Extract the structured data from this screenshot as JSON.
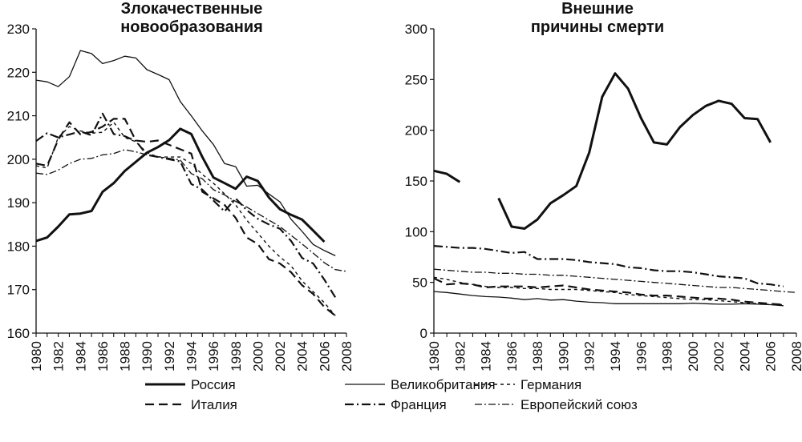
{
  "chart_data": [
    {
      "type": "line",
      "title_lines": [
        "Злокачественные",
        "новообразования"
      ],
      "xlabel": "",
      "ylabel": "",
      "xlim": [
        1980,
        2008
      ],
      "ylim": [
        160,
        230
      ],
      "yticks": [
        160,
        170,
        180,
        190,
        200,
        210,
        220,
        230
      ],
      "xticks": [
        1980,
        1982,
        1984,
        1986,
        1988,
        1990,
        1992,
        1994,
        1996,
        1998,
        2000,
        2002,
        2004,
        2006,
        2008
      ],
      "grid": false,
      "series": [
        {
          "name": "Россия",
          "style": "russia",
          "x": [
            1980,
            1981,
            1982,
            1983,
            1984,
            1985,
            1986,
            1987,
            1988,
            1989,
            1990,
            1991,
            1992,
            1993,
            1994,
            1995,
            1996,
            1997,
            1998,
            1999,
            2000,
            2001,
            2002,
            2003,
            2004,
            2005,
            2006
          ],
          "values": [
            181.2,
            182,
            184.5,
            187.3,
            187.5,
            188.1,
            192.5,
            194.5,
            197.3,
            199.4,
            201.5,
            202.8,
            204.4,
            207,
            205.8,
            200.5,
            195.8,
            194.5,
            193.2,
            196,
            195,
            191.2,
            188.5,
            187.2,
            186.1,
            183.6,
            181
          ]
        },
        {
          "name": "Великобритания",
          "style": "uk",
          "x": [
            1980,
            1981,
            1982,
            1983,
            1984,
            1985,
            1986,
            1987,
            1988,
            1989,
            1990,
            1991,
            1992,
            1993,
            1994,
            1995,
            1996,
            1997,
            1998,
            1999,
            2000,
            2001,
            2002,
            2003,
            2004,
            2005,
            2006,
            2007
          ],
          "values": [
            218.2,
            217.8,
            216.7,
            219,
            225,
            224.3,
            222,
            222.7,
            223.7,
            223.3,
            220.6,
            219.5,
            218.3,
            213.3,
            210,
            206.5,
            203.4,
            199,
            198.3,
            193.8,
            194,
            192,
            190.2,
            186.2,
            183.4,
            180.4,
            179,
            177.8
          ]
        },
        {
          "name": "Германия",
          "style": "germany",
          "x": [
            1980,
            1981,
            1982,
            1983,
            1984,
            1985,
            1986,
            1987,
            1988,
            1989,
            1990,
            1991,
            1992,
            1993,
            1994,
            1995,
            1996,
            1997,
            1998,
            1999,
            2000,
            2001,
            2002,
            2003,
            2004,
            2005,
            2006,
            2007
          ],
          "values": [
            198.5,
            198,
            205,
            207.5,
            206.5,
            206,
            206.2,
            208.5,
            205,
            204,
            201.5,
            200.5,
            200.5,
            200.5,
            199,
            196.5,
            194.5,
            192,
            189.5,
            186,
            183,
            180,
            177.5,
            175.5,
            172,
            169.5,
            167,
            164
          ]
        },
        {
          "name": "Италия",
          "style": "italy",
          "x": [
            1980,
            1981,
            1982,
            1983,
            1984,
            1985,
            1986,
            1987,
            1988,
            1989,
            1990,
            1991,
            1992,
            1993,
            1994,
            1995,
            1996,
            1997,
            1998,
            1999,
            2000,
            2001,
            2002,
            2003,
            2004,
            2005,
            2006,
            2007
          ],
          "values": [
            199,
            198.5,
            204.5,
            208.5,
            205.7,
            206.3,
            207.5,
            209.3,
            209.3,
            204.3,
            204,
            204.3,
            203.3,
            202.3,
            201.3,
            192.5,
            191,
            189.5,
            186.5,
            182,
            180.5,
            177,
            176,
            174,
            171,
            169,
            166,
            164
          ]
        },
        {
          "name": "Франция",
          "style": "france",
          "x": [
            1980,
            1981,
            1982,
            1983,
            1984,
            1985,
            1986,
            1987,
            1988,
            1989,
            1990,
            1991,
            1992,
            1993,
            1994,
            1995,
            1996,
            1997,
            1998,
            1999,
            2000,
            2001,
            2002,
            2003,
            2004,
            2005,
            2006,
            2007
          ],
          "values": [
            204.2,
            206,
            205,
            205.7,
            206.4,
            205.5,
            210.5,
            205.8,
            205.3,
            204.2,
            201,
            200.5,
            200,
            199.5,
            194.3,
            193,
            190.5,
            188,
            191,
            188.3,
            186.3,
            185,
            184,
            181.2,
            177.3,
            176,
            172.3,
            168.2
          ]
        },
        {
          "name": "Европейский союз",
          "style": "eu",
          "x": [
            1980,
            1981,
            1982,
            1983,
            1984,
            1985,
            1986,
            1987,
            1988,
            1989,
            1990,
            1991,
            1992,
            1993,
            1994,
            1995,
            1996,
            1997,
            1998,
            1999,
            2000,
            2001,
            2002,
            2003,
            2004,
            2005,
            2006,
            2007,
            2008
          ],
          "values": [
            196.8,
            196.5,
            197.5,
            199,
            200,
            200.2,
            201,
            201.3,
            202.2,
            201.7,
            201,
            200.6,
            200.2,
            199.8,
            196.7,
            195.5,
            193,
            191.8,
            190.3,
            189,
            187.5,
            186,
            184.5,
            182.5,
            180.5,
            178.4,
            176.2,
            174.6,
            174.2
          ]
        }
      ]
    },
    {
      "type": "line",
      "title_lines": [
        "Внешние",
        "причины смерти"
      ],
      "xlabel": "",
      "ylabel": "",
      "xlim": [
        1980,
        2008
      ],
      "ylim": [
        0,
        300
      ],
      "yticks": [
        0,
        50,
        100,
        150,
        200,
        250,
        300
      ],
      "xticks": [
        1980,
        1982,
        1984,
        1986,
        1988,
        1990,
        1992,
        1994,
        1996,
        1998,
        2000,
        2002,
        2004,
        2006,
        2008
      ],
      "grid": false,
      "series": [
        {
          "name": "Россия",
          "style": "russia",
          "x": [
            1980,
            1981,
            1982,
            null,
            1985,
            1986,
            1987,
            1988,
            1989,
            1990,
            1991,
            1992,
            1993,
            1994,
            1995,
            1996,
            1997,
            1998,
            1999,
            2000,
            2001,
            2002,
            2003,
            2004,
            2005,
            2006
          ],
          "values": [
            160,
            157,
            149,
            null,
            133,
            105,
            103,
            112,
            128,
            136,
            145,
            178,
            233,
            256,
            241,
            212,
            188,
            186,
            203,
            215,
            224,
            229,
            226,
            212,
            211,
            188
          ]
        },
        {
          "name": "Великобритания",
          "style": "uk",
          "x": [
            1980,
            1981,
            1982,
            1983,
            1984,
            1985,
            1986,
            1987,
            1988,
            1989,
            1990,
            1991,
            1992,
            1993,
            1994,
            1995,
            1996,
            1997,
            1998,
            1999,
            2000,
            2001,
            2002,
            2003,
            2004,
            2005,
            2006,
            2007
          ],
          "values": [
            41,
            40,
            38.5,
            37,
            36,
            35.5,
            34.5,
            33,
            34,
            32.5,
            33,
            31.5,
            30.5,
            30,
            29,
            29,
            29,
            29,
            29,
            29,
            29.5,
            29,
            28.5,
            28.5,
            29,
            28.5,
            28,
            27
          ]
        },
        {
          "name": "Германия",
          "style": "germany",
          "x": [
            1980,
            1981,
            1982,
            1983,
            1984,
            1985,
            1986,
            1987,
            1988,
            1989,
            1990,
            1991,
            1992,
            1993,
            1994,
            1995,
            1996,
            1997,
            1998,
            1999,
            2000,
            2001,
            2002,
            2003,
            2004,
            2005,
            2006,
            2007
          ],
          "values": [
            55,
            53,
            50,
            48,
            46,
            45,
            45,
            44,
            44,
            43,
            43,
            43,
            42,
            41,
            40,
            38,
            37,
            36,
            35,
            34,
            33,
            33,
            32,
            31,
            30,
            29,
            28,
            28
          ]
        },
        {
          "name": "Италия",
          "style": "italy",
          "x": [
            1980,
            1981,
            1982,
            1983,
            1984,
            1985,
            1986,
            1987,
            1988,
            1989,
            1990,
            1991,
            1992,
            1993,
            1994,
            1995,
            1996,
            1997,
            1998,
            1999,
            2000,
            2001,
            2002,
            2003,
            2004,
            2005,
            2006,
            2007
          ],
          "values": [
            54,
            48,
            49,
            48,
            45,
            46,
            46,
            46,
            45,
            46,
            47,
            45,
            43,
            42,
            41,
            40,
            38,
            37,
            37,
            36,
            35,
            34,
            34,
            33,
            31,
            30,
            29,
            28
          ]
        },
        {
          "name": "Франция",
          "style": "france",
          "x": [
            1980,
            1981,
            1982,
            1983,
            1984,
            1985,
            1986,
            1987,
            1988,
            1989,
            1990,
            1991,
            1992,
            1993,
            1994,
            1995,
            1996,
            1997,
            1998,
            1999,
            2000,
            2001,
            2002,
            2003,
            2004,
            2005,
            2006,
            2007
          ],
          "values": [
            86,
            85,
            84,
            84,
            83,
            81,
            79,
            80,
            73,
            73,
            73,
            72,
            70,
            69,
            68,
            65,
            64,
            62,
            61,
            61,
            60,
            58,
            56,
            55,
            54,
            49,
            48,
            46
          ]
        },
        {
          "name": "Европейский союз",
          "style": "eu",
          "x": [
            1980,
            1981,
            1982,
            1983,
            1984,
            1985,
            1986,
            1987,
            1988,
            1989,
            1990,
            1991,
            1992,
            1993,
            1994,
            1995,
            1996,
            1997,
            1998,
            1999,
            2000,
            2001,
            2002,
            2003,
            2004,
            2005,
            2006,
            2007,
            2008
          ],
          "values": [
            63,
            62,
            61,
            60,
            60,
            59,
            59,
            58,
            58,
            57,
            57,
            56,
            55,
            54,
            53,
            52,
            51,
            50,
            49,
            48,
            47,
            46,
            45,
            45,
            44,
            43,
            42,
            41,
            40
          ]
        }
      ]
    }
  ],
  "legend": {
    "placement": "bottom",
    "items": [
      {
        "label": "Россия",
        "style": "russia"
      },
      {
        "label": "Великобритания",
        "style": "uk"
      },
      {
        "label": "Германия",
        "style": "germany"
      },
      {
        "label": "Италия",
        "style": "italy"
      },
      {
        "label": "Франция",
        "style": "france"
      },
      {
        "label": "Европейский союз",
        "style": "eu"
      }
    ]
  },
  "line_styles": {
    "russia": {
      "width": 3,
      "dash": ""
    },
    "uk": {
      "width": 1.3,
      "dash": ""
    },
    "germany": {
      "width": 1.4,
      "dash": "4 4"
    },
    "italy": {
      "width": 2.2,
      "dash": "11 6"
    },
    "france": {
      "width": 2.2,
      "dash": "11 4 2 4"
    },
    "eu": {
      "width": 1.3,
      "dash": "9 3 2 3"
    }
  },
  "colors": {
    "line": "#111111",
    "axis": "#111111",
    "background": "#ffffff"
  }
}
